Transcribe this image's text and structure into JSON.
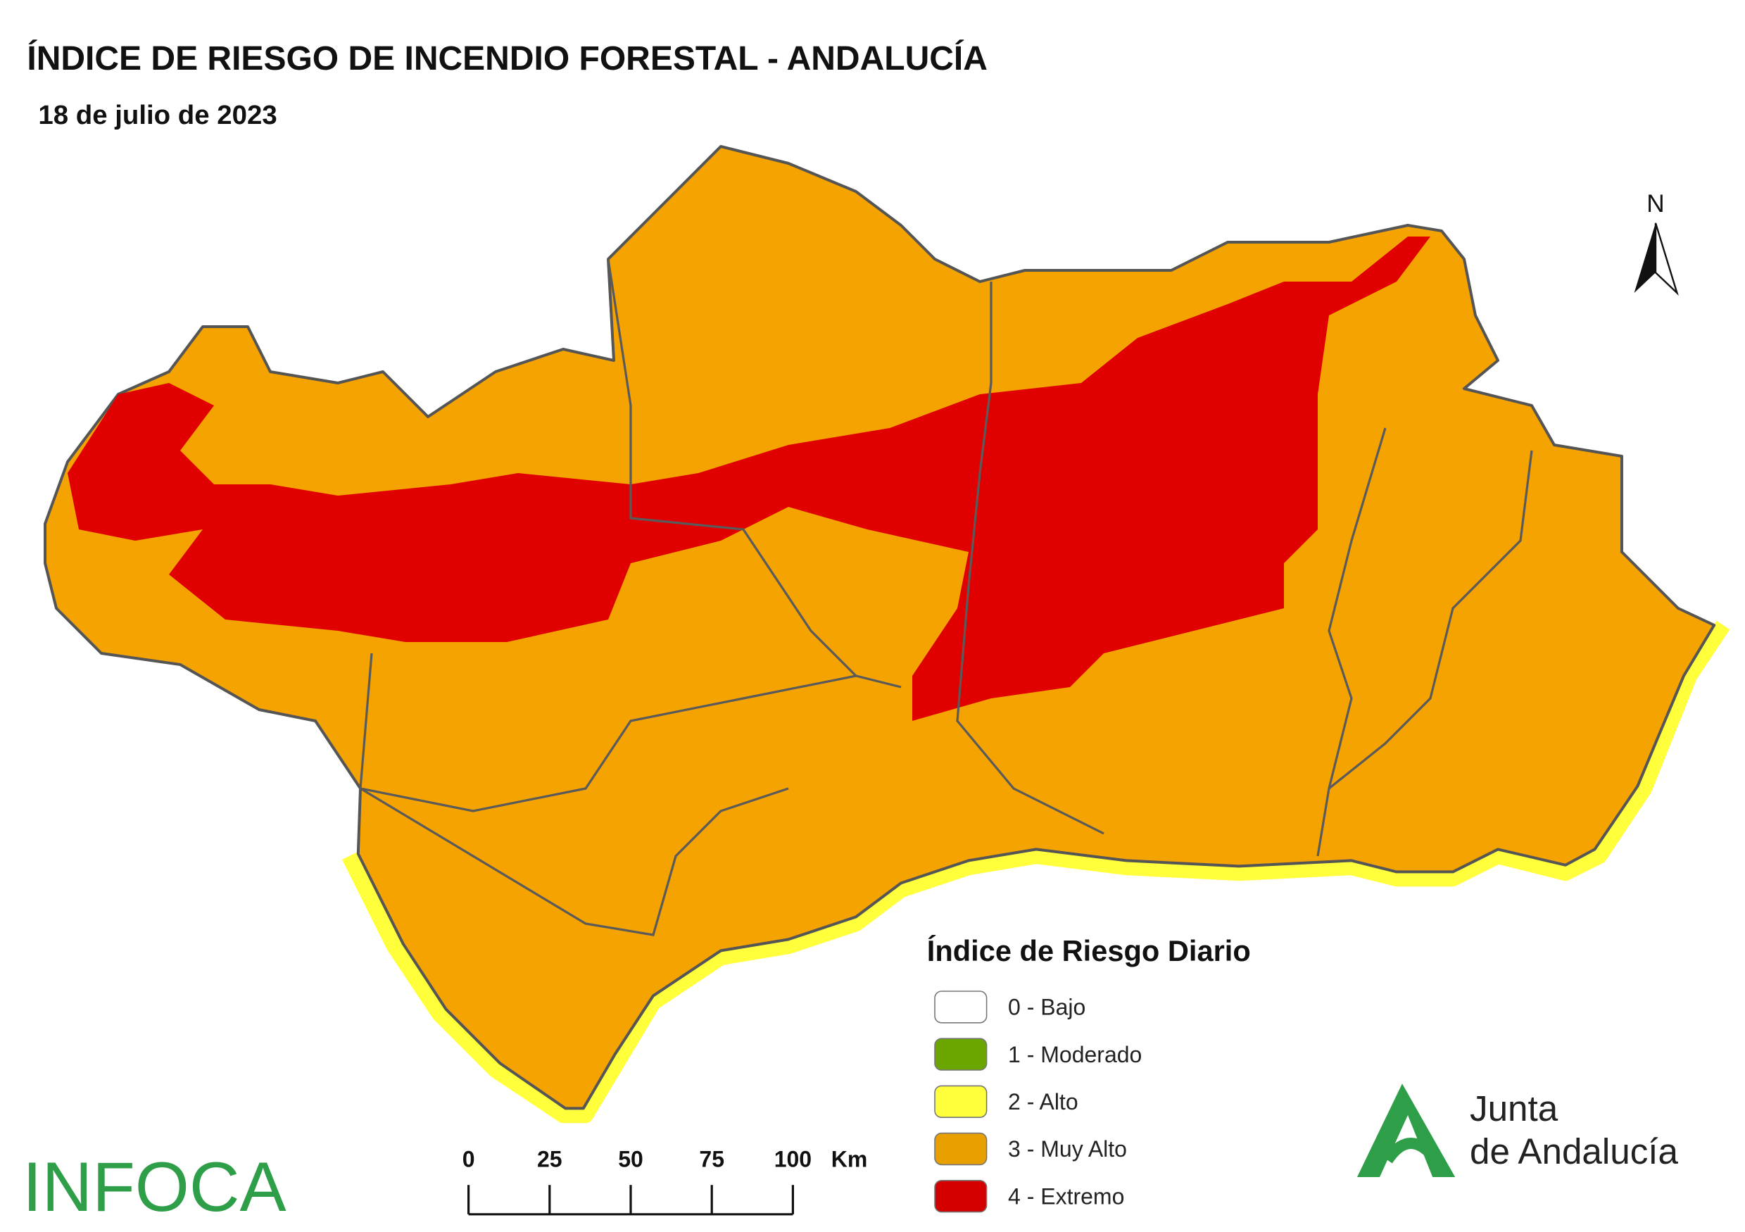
{
  "header": {
    "title": "ÍNDICE DE RIESGO DE INCENDIO FORESTAL - ANDALUCÍA",
    "subtitle": "18 de julio de 2023"
  },
  "north_arrow": {
    "label": "N"
  },
  "legend": {
    "title": "Índice de Riesgo Diario",
    "items": [
      {
        "label": "0 - Bajo",
        "color": "#ffffff"
      },
      {
        "label": "1 - Moderado",
        "color": "#6aa500"
      },
      {
        "label": "2 - Alto",
        "color": "#ffff3c"
      },
      {
        "label": "3 - Muy Alto",
        "color": "#e8a000"
      },
      {
        "label": "4 - Extremo",
        "color": "#d40000"
      }
    ]
  },
  "scale_bar": {
    "ticks": [
      0,
      25,
      50,
      75,
      100
    ],
    "unit": "Km"
  },
  "logos": {
    "left": "INFOCA",
    "right_line1": "Junta",
    "right_line2": "de Andalucía"
  }
}
